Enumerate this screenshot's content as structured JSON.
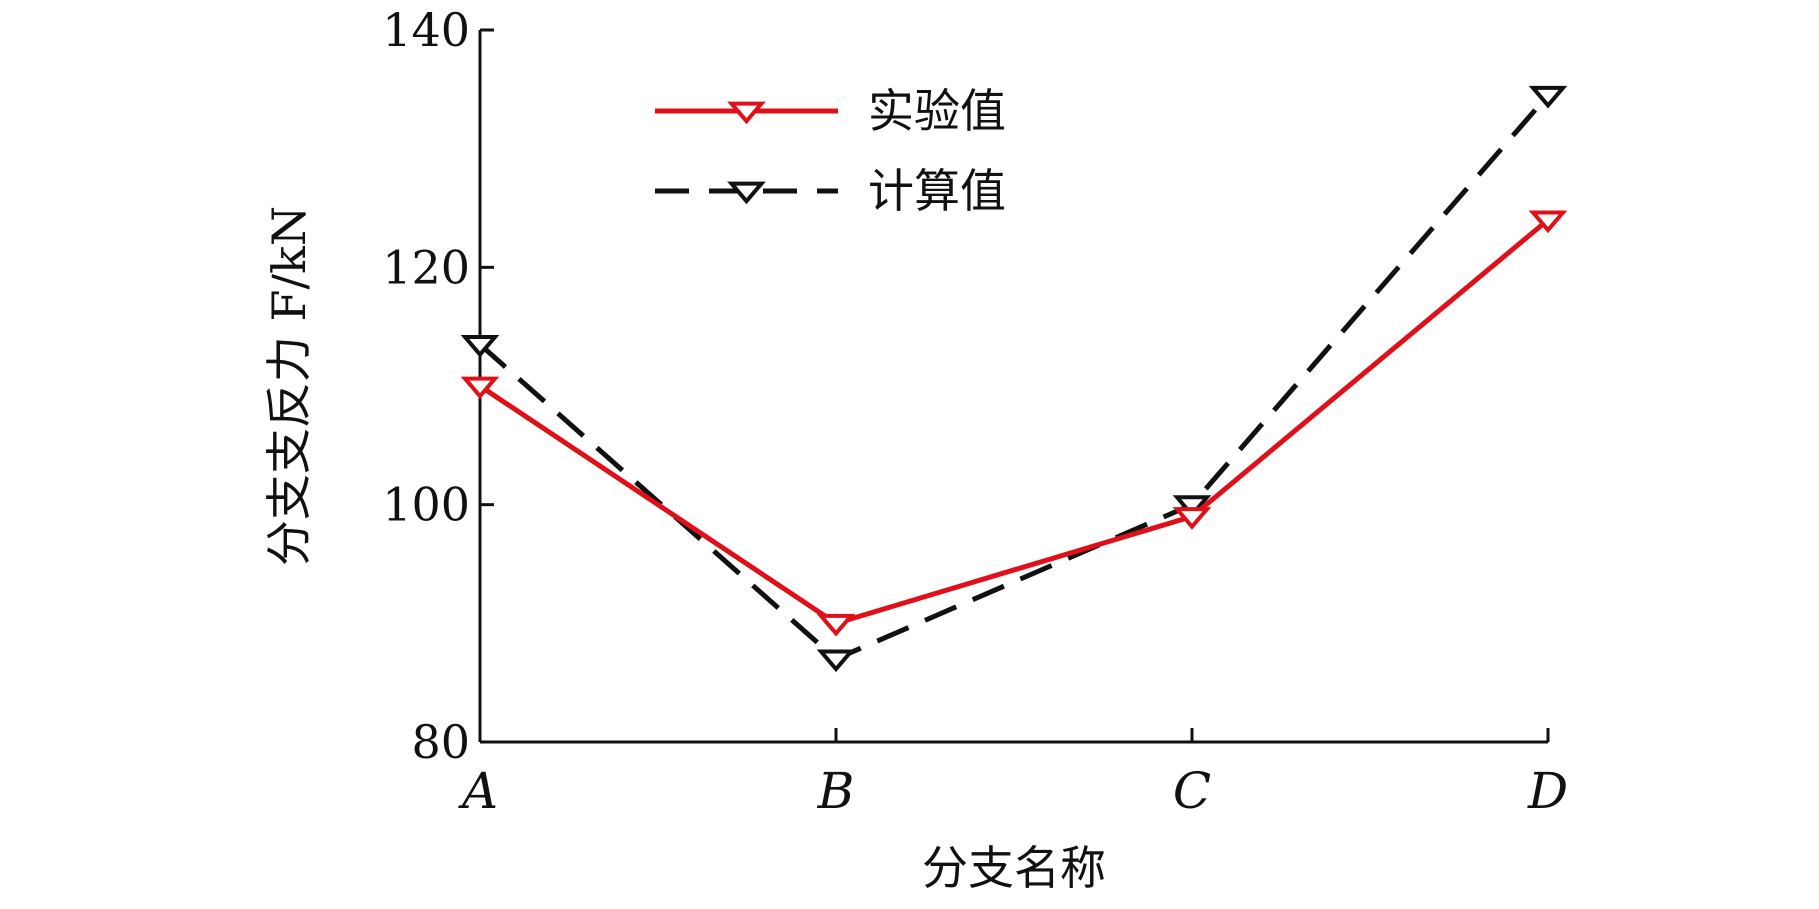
{
  "chart_data": {
    "type": "line",
    "categories": [
      "A",
      "B",
      "C",
      "D"
    ],
    "series": [
      {
        "name": "实验值",
        "values": [
          110,
          90,
          99,
          124
        ],
        "color": "#e0101a",
        "line_style": "solid",
        "marker": "triangle-down-open"
      },
      {
        "name": "计算值",
        "values": [
          113.5,
          87,
          100,
          134.5
        ],
        "color": "#111111",
        "line_style": "dashed",
        "marker": "triangle-down-open"
      }
    ],
    "title": "",
    "xlabel": "分支名称",
    "ylabel": "分支支反力 F/kN",
    "ylim": [
      80,
      140
    ],
    "yticks": [
      80,
      100,
      120,
      140
    ],
    "grid": false,
    "legend_position": "top-center"
  }
}
